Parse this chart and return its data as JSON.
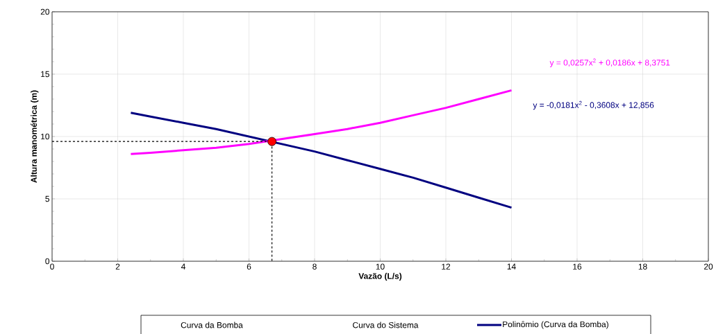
{
  "chart_data": {
    "type": "line",
    "xlabel": "Vazão (L/s)",
    "ylabel": "Altura manométrica (m)",
    "xlim": [
      0,
      20
    ],
    "ylim": [
      0,
      20
    ],
    "xticks": [
      0,
      2,
      4,
      6,
      8,
      10,
      12,
      14,
      16,
      18,
      20
    ],
    "yticks": [
      0,
      5,
      10,
      15,
      20
    ],
    "grid": true,
    "legend": "bottom",
    "annotations": [
      "Curva da Bomba",
      "Curva do Sistema",
      "y = 0,0257x$^{2}$ + 0,0186x + 8,3751",
      "y = -0,0181x$^{2}$ - 0,3608x + 12,856"
    ],
    "series": [
      {
        "name": "Polinômio (Curva da Bomba)",
        "color": "#000080",
        "marker": "none",
        "line_style": "solid",
        "x": [
          2.4,
          3,
          4,
          5,
          6,
          7,
          8,
          9,
          10,
          11,
          12,
          13,
          14
        ],
        "values": [
          11.9,
          11.6,
          11.1,
          10.6,
          10.0,
          9.4,
          8.8,
          8.1,
          7.4,
          6.7,
          5.9,
          5.1,
          4.3
        ]
      },
      {
        "color": "#ff00ff",
        "marker": "none",
        "line_style": "solid",
        "x": [
          2.4,
          3,
          4,
          5,
          6,
          7,
          8,
          9,
          10,
          11,
          12,
          13,
          14
        ],
        "values": [
          8.6,
          8.7,
          8.9,
          9.1,
          9.4,
          9.8,
          10.2,
          10.6,
          11.1,
          11.7,
          12.3,
          13.0,
          13.7
        ]
      },
      {
        "type": "scatter",
        "color": "#ff0000",
        "marker": "circle",
        "x": [
          6.7
        ],
        "values": [
          9.6
        ]
      },
      {
        "color": "#000000",
        "marker": "none",
        "line_style": "dashed",
        "x": [
          0,
          6.7,
          6.7
        ],
        "values": [
          9.6,
          9.6,
          0
        ]
      }
    ]
  }
}
